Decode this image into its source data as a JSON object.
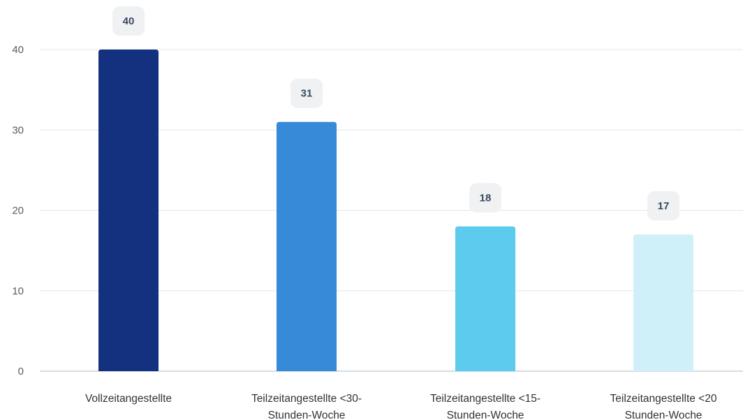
{
  "chart_data": {
    "type": "bar",
    "title": "",
    "xlabel": "",
    "ylabel": "",
    "ylim": [
      0,
      40
    ],
    "yticks": [
      "0",
      "10",
      "20",
      "30",
      "40"
    ],
    "grid": true,
    "categories": [
      [
        "Vollzeitangestellte"
      ],
      [
        "Teilzeitangestellte <30-",
        "Stunden-Woche"
      ],
      [
        "Teilzeitangestellte <15-",
        "Stunden-Woche"
      ],
      [
        "Teilzeitangestellte <20",
        "Stunden-Woche"
      ]
    ],
    "values": [
      40,
      31,
      18,
      17
    ],
    "value_labels": [
      "40",
      "31",
      "18",
      "17"
    ],
    "colors": [
      "#13317f",
      "#378ad7",
      "#5dcbee",
      "#cff0f9"
    ],
    "label_badge_color": "#f0f1f3",
    "grid_color": "#e3e6ea",
    "axis_color": "#c9d1dc"
  }
}
